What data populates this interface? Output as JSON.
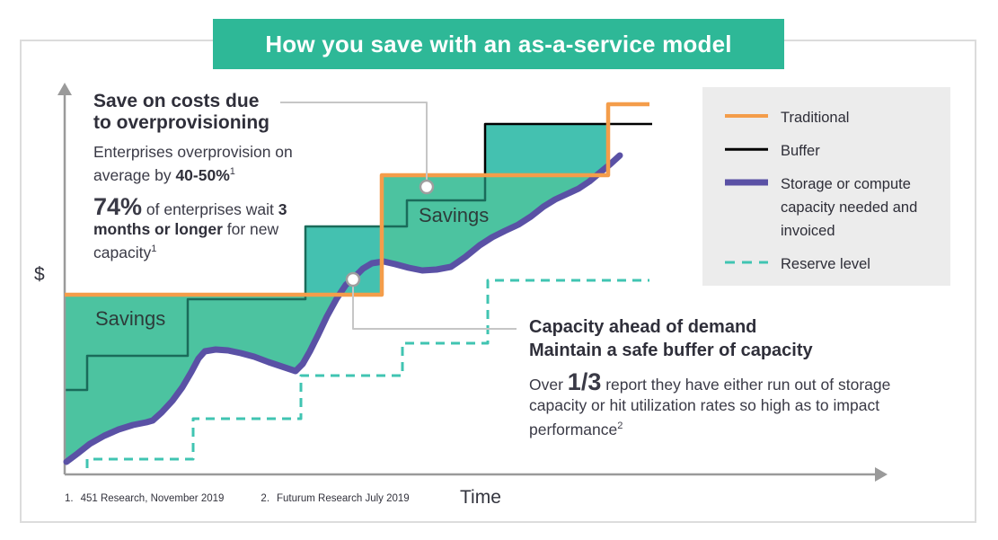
{
  "banner": {
    "title": "How you save with an as-a-service model",
    "bg": "#2eb897"
  },
  "annotation_left": {
    "heading1": "Save on costs due",
    "heading2": "to overprovisioning",
    "p1_normal": "Enterprises overprovision on average by ",
    "p1_bold": "40-50%",
    "p1_sup": "1",
    "stat_value": "74%",
    "stat_mid": " of enterprises wait ",
    "stat_bold": "3 months or longer",
    "stat_tail": " for new capacity",
    "stat_sup": "1"
  },
  "annotation_right": {
    "heading1": "Capacity ahead of demand",
    "heading2": "Maintain a safe buffer of capacity",
    "body_pre": "Over ",
    "body_value": "1/3",
    "body_post": " report they have either run out of storage capacity or hit utilization rates so high as to impact performance",
    "body_sup": "2"
  },
  "legend": {
    "bg": "#ececec",
    "items": [
      {
        "id": "traditional",
        "label": "Traditional"
      },
      {
        "id": "buffer",
        "label": "Buffer"
      },
      {
        "id": "demand",
        "label": "Storage or compute capacity needed and invoiced"
      },
      {
        "id": "reserve",
        "label": "Reserve level"
      }
    ]
  },
  "footnotes": [
    {
      "num": "1.",
      "text": "451 Research, November 2019"
    },
    {
      "num": "2.",
      "text": "Futurum Research July 2019"
    }
  ],
  "chart_data": {
    "type": "area",
    "title": "How you save with an as-a-service model",
    "xlabel": "Time",
    "ylabel": "$",
    "grid": false,
    "legend_position": "right",
    "area_labels": [
      {
        "text": "Savings"
      },
      {
        "text": "Savings"
      }
    ],
    "series_colors": {
      "traditional": "#F49D4A",
      "buffer": "#000000",
      "demand": "#5A51A5",
      "reserve": "#40C4B2"
    },
    "fill_colors": {
      "savings_green": "#4CC3A0",
      "savings_cyan": "#44C1B0"
    },
    "axis_color": "#9a9a9a",
    "layers": [
      {
        "name": "savings-fill-green",
        "fill": "#4CC3A0",
        "points": [
          [
            72,
            328
          ],
          [
            425,
            328
          ],
          [
            425,
            196
          ],
          [
            665,
            196
          ],
          [
            656,
            202
          ],
          [
            644,
            210
          ],
          [
            631,
            216
          ],
          [
            618,
            222
          ],
          [
            605,
            230
          ],
          [
            591,
            241
          ],
          [
            577,
            250
          ],
          [
            562,
            257
          ],
          [
            548,
            264
          ],
          [
            534,
            273
          ],
          [
            518,
            286
          ],
          [
            502,
            297
          ],
          [
            486,
            300
          ],
          [
            470,
            301
          ],
          [
            455,
            298
          ],
          [
            440,
            294
          ],
          [
            427,
            291
          ],
          [
            414,
            293
          ],
          [
            404,
            299
          ],
          [
            394,
            309
          ],
          [
            385,
            317
          ],
          [
            375,
            332
          ],
          [
            364,
            352
          ],
          [
            354,
            373
          ],
          [
            345,
            391
          ],
          [
            337,
            405
          ],
          [
            329,
            413
          ],
          [
            314,
            408
          ],
          [
            299,
            403
          ],
          [
            283,
            397
          ],
          [
            268,
            393
          ],
          [
            254,
            390
          ],
          [
            240,
            389
          ],
          [
            228,
            391
          ],
          [
            221,
            399
          ],
          [
            213,
            414
          ],
          [
            203,
            431
          ],
          [
            192,
            446
          ],
          [
            180,
            459
          ],
          [
            170,
            468
          ],
          [
            163,
            470
          ],
          [
            148,
            473
          ],
          [
            132,
            478
          ],
          [
            116,
            485
          ],
          [
            100,
            494
          ],
          [
            86,
            505
          ],
          [
            74,
            514
          ],
          [
            72,
            516
          ]
        ]
      },
      {
        "name": "savings-fill-cyan-left",
        "fill": "#44C1B0",
        "points": [
          [
            340,
            252
          ],
          [
            425,
            252
          ],
          [
            425,
            328
          ],
          [
            340,
            328
          ]
        ]
      },
      {
        "name": "savings-fill-cyan-right",
        "fill": "#44C1B0",
        "points": [
          [
            540,
            139
          ],
          [
            677,
            139
          ],
          [
            677,
            183
          ],
          [
            668,
            192
          ],
          [
            665,
            196
          ],
          [
            540,
            196
          ]
        ]
      },
      {
        "name": "buffer-line-under-fill",
        "stroke": "#1A6B5A",
        "width": 2.5,
        "points": [
          [
            72,
            434
          ],
          [
            97,
            434
          ],
          [
            97,
            396
          ],
          [
            209,
            396
          ],
          [
            209,
            333
          ],
          [
            340,
            333
          ],
          [
            340,
            252
          ],
          [
            453,
            252
          ],
          [
            453,
            223
          ],
          [
            540,
            223
          ],
          [
            540,
            196
          ]
        ]
      },
      {
        "name": "reserve-line",
        "stroke": "#40C4B2",
        "width": 3,
        "dash": "10 7",
        "points": [
          [
            97,
            521
          ],
          [
            97,
            511
          ],
          [
            215,
            511
          ],
          [
            215,
            466
          ],
          [
            335,
            466
          ],
          [
            335,
            418
          ],
          [
            448,
            418
          ],
          [
            448,
            382
          ],
          [
            543,
            382
          ],
          [
            543,
            312
          ],
          [
            723,
            312
          ]
        ]
      },
      {
        "name": "buffer-line",
        "stroke": "#000000",
        "width": 2.5,
        "points": [
          [
            540,
            196
          ],
          [
            540,
            138
          ],
          [
            726,
            138
          ]
        ]
      },
      {
        "name": "x-axis",
        "stroke": "#9a9a9a",
        "width": 2.5,
        "points": [
          [
            72,
            528
          ],
          [
            976,
            528
          ]
        ]
      },
      {
        "name": "y-axis",
        "stroke": "#9a9a9a",
        "width": 2.5,
        "points": [
          [
            72,
            528
          ],
          [
            72,
            102
          ]
        ]
      },
      {
        "name": "y-axis-arrow",
        "fill": "#9a9a9a",
        "points": [
          [
            72,
            92
          ],
          [
            64,
            106
          ],
          [
            80,
            106
          ]
        ]
      },
      {
        "name": "x-axis-arrow",
        "fill": "#9a9a9a",
        "points": [
          [
            988,
            528
          ],
          [
            974,
            520
          ],
          [
            974,
            536
          ]
        ]
      },
      {
        "name": "demand-line",
        "stroke": "#5A51A5",
        "width": 7,
        "cap": "round",
        "points": [
          [
            74,
            514
          ],
          [
            86,
            505
          ],
          [
            100,
            494
          ],
          [
            116,
            485
          ],
          [
            132,
            478
          ],
          [
            148,
            473
          ],
          [
            163,
            470
          ],
          [
            170,
            468
          ],
          [
            180,
            459
          ],
          [
            192,
            446
          ],
          [
            203,
            431
          ],
          [
            213,
            414
          ],
          [
            221,
            399
          ],
          [
            228,
            391
          ],
          [
            240,
            389
          ],
          [
            254,
            390
          ],
          [
            268,
            393
          ],
          [
            283,
            397
          ],
          [
            299,
            403
          ],
          [
            314,
            408
          ],
          [
            329,
            413
          ],
          [
            337,
            405
          ],
          [
            345,
            391
          ],
          [
            354,
            373
          ],
          [
            364,
            352
          ],
          [
            375,
            332
          ],
          [
            385,
            317
          ],
          [
            394,
            309
          ],
          [
            404,
            299
          ],
          [
            414,
            293
          ],
          [
            427,
            291
          ],
          [
            440,
            294
          ],
          [
            455,
            298
          ],
          [
            470,
            301
          ],
          [
            486,
            300
          ],
          [
            502,
            297
          ],
          [
            518,
            286
          ],
          [
            534,
            273
          ],
          [
            548,
            264
          ],
          [
            562,
            257
          ],
          [
            577,
            250
          ],
          [
            591,
            241
          ],
          [
            605,
            230
          ],
          [
            618,
            222
          ],
          [
            631,
            216
          ],
          [
            644,
            210
          ],
          [
            656,
            202
          ],
          [
            668,
            192
          ],
          [
            679,
            183
          ],
          [
            690,
            173
          ]
        ]
      },
      {
        "name": "traditional-line",
        "stroke": "#F49D4A",
        "width": 4.5,
        "points": [
          [
            72,
            328
          ],
          [
            425,
            328
          ],
          [
            425,
            195
          ],
          [
            677,
            195
          ],
          [
            677,
            116
          ],
          [
            723,
            116
          ]
        ]
      },
      {
        "name": "connector-overprovision",
        "stroke": "#c6c6c6",
        "width": 2,
        "points": [
          [
            312,
            114
          ],
          [
            475,
            114
          ],
          [
            475,
            201
          ]
        ]
      },
      {
        "name": "connector-capacity",
        "stroke": "#c6c6c6",
        "width": 2,
        "points": [
          [
            393,
            318
          ],
          [
            393,
            366
          ],
          [
            575,
            366
          ]
        ]
      },
      {
        "name": "marker-overprovision",
        "circle": [
          475,
          208
        ],
        "r": 7,
        "stroke": "#9e9e9e"
      },
      {
        "name": "marker-capacity",
        "circle": [
          393,
          311
        ],
        "r": 7,
        "stroke": "#9e9e9e"
      }
    ]
  }
}
